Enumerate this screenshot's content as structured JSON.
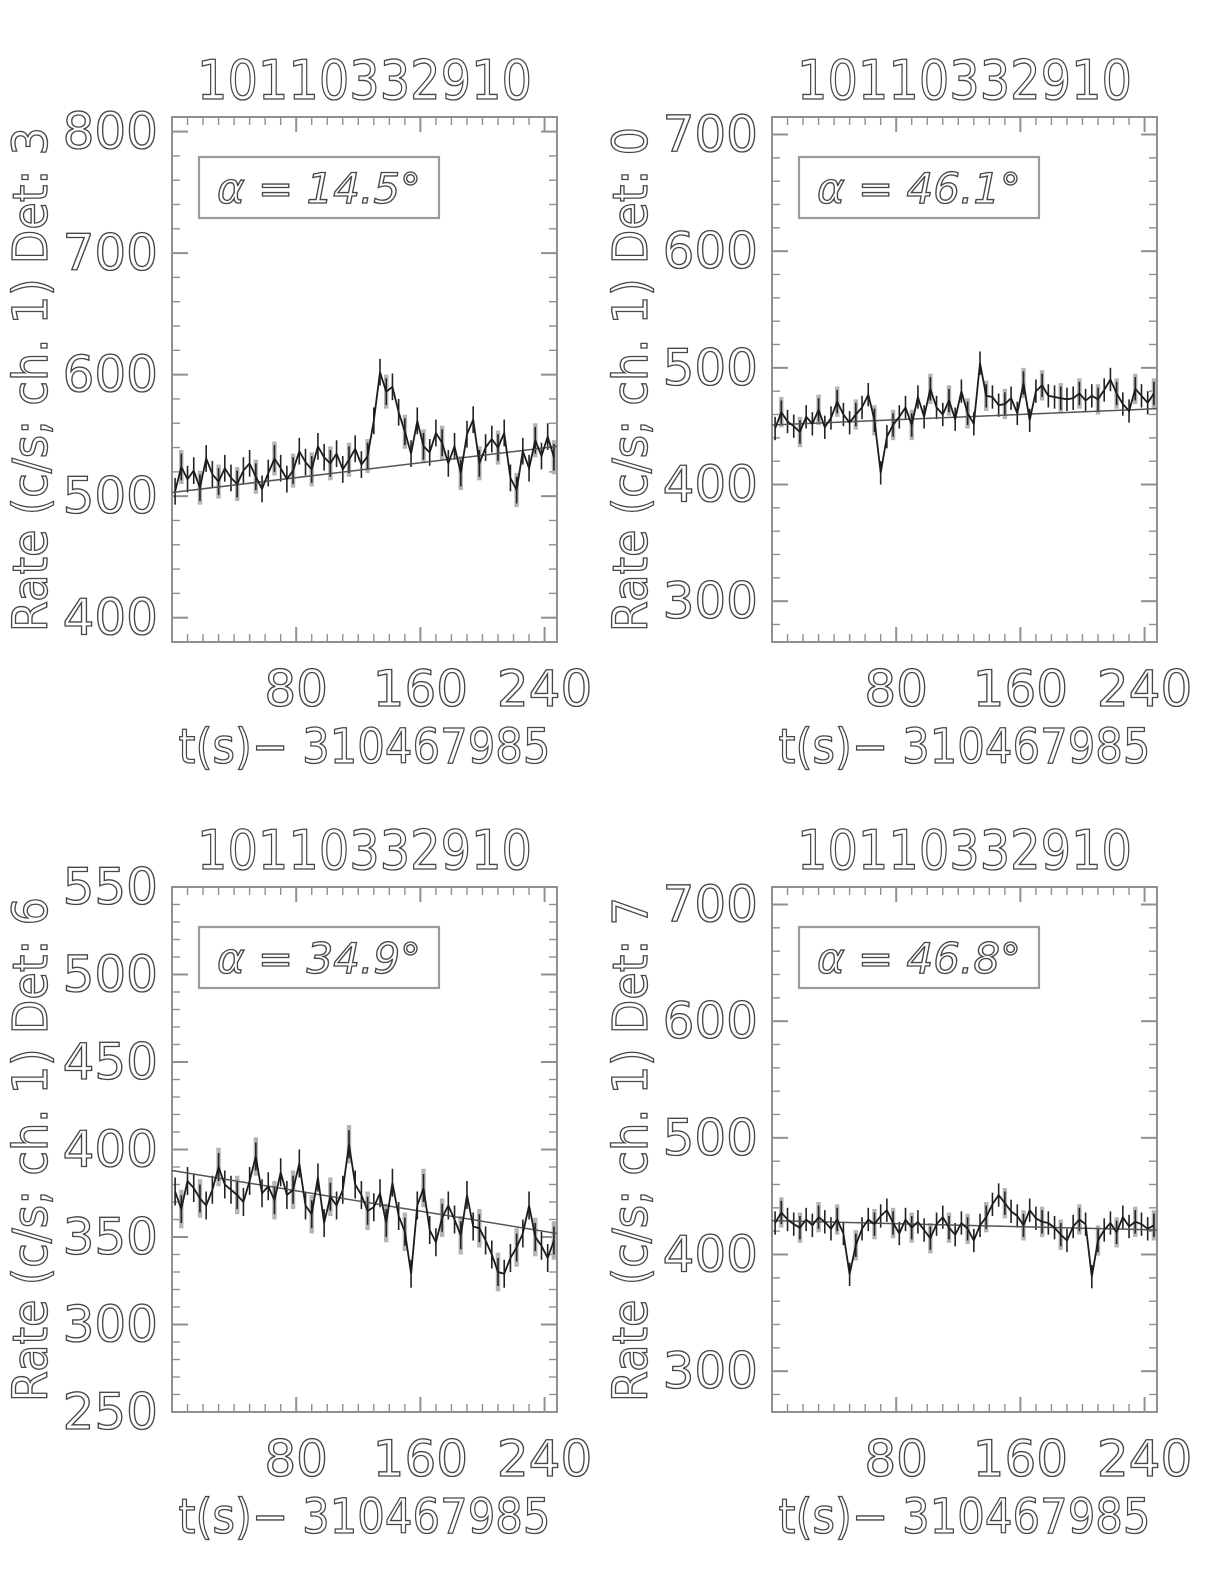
{
  "figure": {
    "background": "#ffffff",
    "description": "Four-panel detector light-curve figure"
  },
  "colors": {
    "data_line": "#1c1c1c",
    "error_bar": "#222222",
    "error_bar_coarse": "#b4b4b4",
    "trend_line": "#555555",
    "axis": "#909090",
    "text": "#474747",
    "background": "#ffffff"
  },
  "chart_data": [
    {
      "type": "line",
      "panel": "top-left",
      "title": "10110332910",
      "xlabel": "t(s)− 310467985",
      "ylabel": "Rate (c/s; ch. 1) Det: 3",
      "annotation": "α =  14.5°",
      "grid": false,
      "legend": false,
      "xlim": [
        0,
        248
      ],
      "xticks": [
        80,
        160,
        240
      ],
      "x_minor_step": 10,
      "ylim": [
        380,
        812
      ],
      "yticks": [
        400,
        500,
        600,
        700,
        800
      ],
      "y_minor_step": 20,
      "yerr": 11,
      "trend": {
        "start": 503,
        "end": 541
      },
      "x": [
        2,
        6,
        10,
        14,
        18,
        22,
        26,
        30,
        34,
        38,
        42,
        46,
        50,
        54,
        58,
        62,
        66,
        70,
        74,
        78,
        82,
        86,
        90,
        94,
        98,
        102,
        106,
        110,
        114,
        118,
        122,
        126,
        130,
        134,
        138,
        142,
        146,
        150,
        154,
        158,
        162,
        166,
        170,
        174,
        178,
        182,
        186,
        190,
        194,
        198,
        202,
        206,
        210,
        214,
        218,
        222,
        226,
        230,
        234,
        238,
        242,
        246
      ],
      "y": [
        504,
        524,
        514,
        521,
        507,
        531,
        518,
        512,
        523,
        515,
        510,
        521,
        527,
        516,
        506,
        519,
        531,
        523,
        514,
        521,
        537,
        528,
        522,
        541,
        532,
        527,
        535,
        522,
        530,
        539,
        526,
        533,
        562,
        602,
        586,
        590,
        569,
        553,
        535,
        562,
        541,
        536,
        552,
        544,
        527,
        541,
        519,
        551,
        563,
        527,
        540,
        547,
        540,
        552,
        515,
        505,
        537,
        523,
        546,
        533,
        549,
        532
      ]
    },
    {
      "type": "line",
      "panel": "top-right",
      "title": "10110332910",
      "xlabel": "t(s)− 310467985",
      "ylabel": "Rate (c/s; ch. 1) Det: 0",
      "annotation": "α =  46.1°",
      "grid": false,
      "legend": false,
      "xlim": [
        0,
        248
      ],
      "xticks": [
        80,
        160,
        240
      ],
      "x_minor_step": 10,
      "ylim": [
        265,
        715
      ],
      "yticks": [
        300,
        400,
        500,
        600,
        700
      ],
      "y_minor_step": 20,
      "yerr": 10,
      "trend": {
        "start": 451,
        "end": 465
      },
      "x": [
        2,
        6,
        10,
        14,
        18,
        22,
        26,
        30,
        34,
        38,
        42,
        46,
        50,
        54,
        58,
        62,
        66,
        70,
        74,
        78,
        82,
        86,
        90,
        94,
        98,
        102,
        106,
        110,
        114,
        118,
        122,
        126,
        130,
        134,
        138,
        142,
        146,
        150,
        154,
        158,
        162,
        166,
        170,
        174,
        178,
        182,
        186,
        190,
        194,
        198,
        202,
        206,
        210,
        214,
        218,
        222,
        226,
        230,
        234,
        238,
        242,
        246
      ],
      "y": [
        448,
        462,
        454,
        450,
        445,
        458,
        452,
        464,
        449,
        457,
        471,
        460,
        453,
        460,
        466,
        477,
        455,
        410,
        441,
        451,
        458,
        466,
        451,
        475,
        458,
        482,
        466,
        460,
        472,
        456,
        480,
        461,
        452,
        504,
        476,
        475,
        468,
        469,
        474,
        461,
        487,
        455,
        480,
        485,
        476,
        475,
        474,
        473,
        474,
        478,
        472,
        476,
        473,
        481,
        490,
        478,
        469,
        463,
        482,
        476,
        470,
        478
      ]
    },
    {
      "type": "line",
      "panel": "bottom-left",
      "title": "10110332910",
      "xlabel": "t(s)− 310467985",
      "ylabel": "Rate (c/s; ch. 1) Det: 6",
      "annotation": "α =  34.9°",
      "grid": false,
      "legend": false,
      "xlim": [
        0,
        248
      ],
      "xticks": [
        80,
        160,
        240
      ],
      "x_minor_step": 10,
      "ylim": [
        250,
        550
      ],
      "yticks": [
        250,
        300,
        350,
        400,
        450,
        500,
        550
      ],
      "y_minor_step": 10,
      "yerr": 8,
      "trend": {
        "start": 388,
        "end": 352
      },
      "x": [
        2,
        6,
        10,
        14,
        18,
        22,
        26,
        30,
        34,
        38,
        42,
        46,
        50,
        54,
        58,
        62,
        66,
        70,
        74,
        78,
        82,
        86,
        90,
        94,
        98,
        102,
        106,
        110,
        114,
        118,
        122,
        126,
        130,
        134,
        138,
        142,
        146,
        150,
        154,
        158,
        162,
        166,
        170,
        174,
        178,
        182,
        186,
        190,
        194,
        198,
        202,
        206,
        210,
        214,
        218,
        222,
        226,
        230,
        234,
        238,
        242,
        246
      ],
      "y": [
        376,
        366,
        382,
        378,
        372,
        368,
        377,
        390,
        380,
        377,
        374,
        370,
        382,
        396,
        375,
        379,
        371,
        387,
        374,
        377,
        392,
        368,
        363,
        384,
        358,
        373,
        368,
        377,
        403,
        380,
        374,
        365,
        367,
        375,
        358,
        381,
        362,
        353,
        329,
        368,
        378,
        354,
        347,
        361,
        368,
        360,
        351,
        374,
        356,
        355,
        348,
        340,
        330,
        329,
        338,
        344,
        352,
        368,
        350,
        345,
        338,
        348
      ]
    },
    {
      "type": "line",
      "panel": "bottom-right",
      "title": "10110332910",
      "xlabel": "t(s)− 310467985",
      "ylabel": "Rate (c/s; ch. 1) Det: 7",
      "annotation": "α =  46.8°",
      "grid": false,
      "legend": false,
      "xlim": [
        0,
        248
      ],
      "xticks": [
        80,
        160,
        240
      ],
      "x_minor_step": 10,
      "ylim": [
        265,
        715
      ],
      "yticks": [
        300,
        400,
        500,
        600,
        700
      ],
      "y_minor_step": 20,
      "yerr": 10,
      "trend": {
        "start": 429,
        "end": 421
      },
      "x": [
        2,
        6,
        10,
        14,
        18,
        22,
        26,
        30,
        34,
        38,
        42,
        46,
        50,
        54,
        58,
        62,
        66,
        70,
        74,
        78,
        82,
        86,
        90,
        94,
        98,
        102,
        106,
        110,
        114,
        118,
        122,
        126,
        130,
        134,
        138,
        142,
        146,
        150,
        154,
        158,
        162,
        166,
        170,
        174,
        178,
        182,
        186,
        190,
        194,
        198,
        202,
        206,
        210,
        214,
        218,
        222,
        226,
        230,
        234,
        238,
        242,
        246
      ],
      "y": [
        427,
        436,
        430,
        426,
        423,
        430,
        425,
        432,
        428,
        422,
        430,
        418,
        383,
        408,
        422,
        430,
        426,
        433,
        438,
        427,
        418,
        430,
        423,
        428,
        421,
        414,
        426,
        432,
        423,
        417,
        427,
        422,
        412,
        425,
        432,
        443,
        451,
        444,
        437,
        433,
        425,
        438,
        431,
        428,
        427,
        423,
        417,
        412,
        424,
        430,
        426,
        381,
        412,
        421,
        427,
        419,
        432,
        424,
        428,
        426,
        422,
        425
      ]
    }
  ]
}
